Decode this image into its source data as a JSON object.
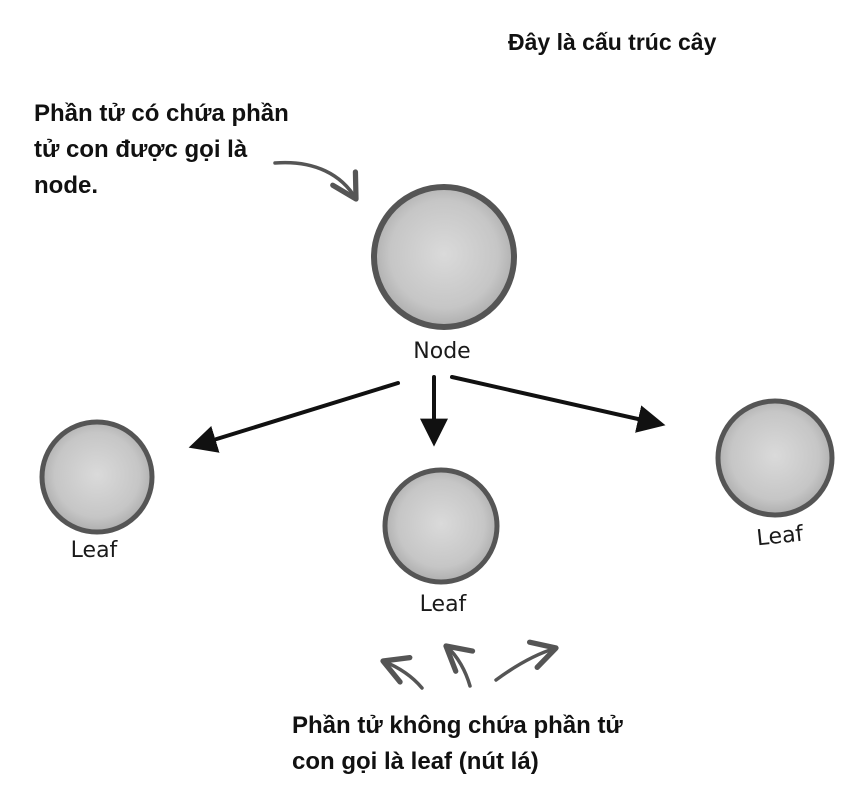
{
  "title": "Đây là cấu trúc cây",
  "node_note": "Phần tử có chứa phần tử con được gọi là node.",
  "leaf_note": "Phần tử không chứa phần tử con gọi là leaf (nút lá)",
  "tree": {
    "root": {
      "label": "Node"
    },
    "children": [
      {
        "label": "Leaf"
      },
      {
        "label": "Leaf"
      },
      {
        "label": "Leaf"
      }
    ]
  },
  "colors": {
    "circle_fill": "#c8c8c8",
    "circle_stroke": "#555555",
    "arrow": "#111111",
    "pointer": "#555555"
  }
}
